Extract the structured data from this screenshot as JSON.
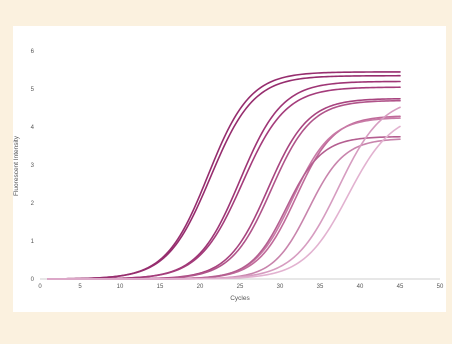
{
  "chart_data": {
    "type": "line",
    "title": "",
    "xlabel": "Cycles",
    "ylabel": "Fluorescent Intensity",
    "xlim": [
      0,
      50
    ],
    "ylim": [
      0,
      6
    ],
    "xticks": [
      "0",
      "5",
      "10",
      "15",
      "20",
      "25",
      "30",
      "35",
      "40",
      "45",
      "50"
    ],
    "yticks": [
      "0",
      "1",
      "2",
      "3",
      "4",
      "5",
      "6"
    ],
    "grid": false,
    "legend": "none",
    "x_start": 1,
    "x_end": 45,
    "series": [
      {
        "color": "#962d6e",
        "plateau": 5.45,
        "midpoint": 21.0,
        "slope": 0.38,
        "shape": "sigmoid"
      },
      {
        "color": "#962d6e",
        "plateau": 5.35,
        "midpoint": 21.3,
        "slope": 0.37,
        "shape": "sigmoid"
      },
      {
        "color": "#9e3575",
        "plateau": 5.2,
        "midpoint": 25.0,
        "slope": 0.38,
        "shape": "sigmoid"
      },
      {
        "color": "#a43c7b",
        "plateau": 5.05,
        "midpoint": 25.3,
        "slope": 0.37,
        "shape": "sigmoid"
      },
      {
        "color": "#a8447f",
        "plateau": 4.75,
        "midpoint": 28.5,
        "slope": 0.4,
        "shape": "sigmoid"
      },
      {
        "color": "#b0548a",
        "plateau": 4.7,
        "midpoint": 28.9,
        "slope": 0.4,
        "shape": "sigmoid"
      },
      {
        "color": "#c06a9a",
        "plateau": 4.3,
        "midpoint": 32.0,
        "slope": 0.42,
        "shape": "sigmoid"
      },
      {
        "color": "#c87aa6",
        "plateau": 4.25,
        "midpoint": 31.6,
        "slope": 0.42,
        "shape": "sigmoid"
      },
      {
        "color": "#b45e90",
        "plateau": 3.75,
        "midpoint": 30.8,
        "slope": 0.45,
        "shape": "sigmoid"
      },
      {
        "color": "#c884ac",
        "plateau": 3.7,
        "midpoint": 33.6,
        "slope": 0.45,
        "shape": "sigmoid"
      },
      {
        "color": "#d69cc0",
        "plateau": 4.8,
        "midpoint": 37.3,
        "slope": 0.36,
        "shape": "sigmoid"
      },
      {
        "color": "#e2b2d0",
        "plateau": 4.4,
        "midpoint": 38.5,
        "slope": 0.36,
        "shape": "sigmoid"
      }
    ]
  }
}
